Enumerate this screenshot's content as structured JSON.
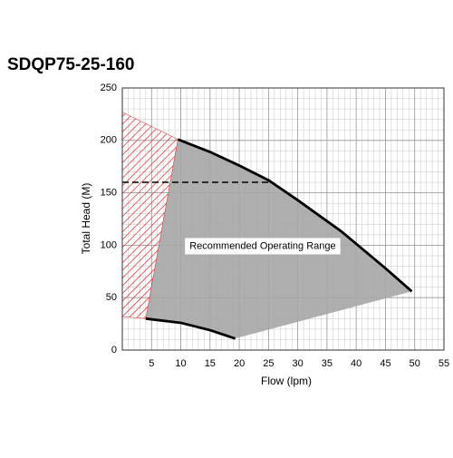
{
  "chart_data": {
    "type": "line",
    "title": "SDQP75-25-160",
    "xlabel": "Flow (lpm)",
    "ylabel": "Total Head (M)",
    "xlim": [
      0,
      55
    ],
    "ylim": [
      0,
      250
    ],
    "xticks": [
      5,
      10,
      15,
      20,
      25,
      30,
      35,
      40,
      45,
      50,
      55
    ],
    "yticks": [
      0,
      50,
      100,
      150,
      200,
      250
    ],
    "x_minor_step": 1,
    "y_minor_step": 10,
    "grid": true,
    "areas": [
      {
        "color": "#a6a6a6",
        "x": [
          9.5,
          15,
          20,
          25,
          30,
          37.5,
          45,
          49.5,
          19.3,
          15,
          10,
          4
        ],
        "values": [
          201,
          189,
          176,
          162,
          143,
          113,
          78,
          56,
          11,
          19,
          26,
          30
        ]
      },
      {
        "color": "#d9262c",
        "hatch": true,
        "x": [
          0,
          9.5,
          4,
          0
        ],
        "values": [
          227,
          201,
          30,
          32
        ]
      }
    ],
    "series": [
      {
        "color": "#000000",
        "x": [
          9.5,
          15,
          20,
          25,
          30,
          37.5,
          45,
          49.5
        ],
        "values": [
          201,
          189,
          176,
          162,
          143,
          113,
          78,
          56
        ]
      },
      {
        "color": "#000000",
        "x": [
          4,
          10,
          15,
          19.3
        ],
        "values": [
          30,
          26,
          19,
          11
        ]
      },
      {
        "color": "#000000",
        "dashed": true,
        "x": [
          0,
          25
        ],
        "values": [
          160,
          160
        ]
      }
    ],
    "annotations": [
      {
        "text": "Recommended Operating Range",
        "x": 24,
        "y": 99
      }
    ]
  }
}
